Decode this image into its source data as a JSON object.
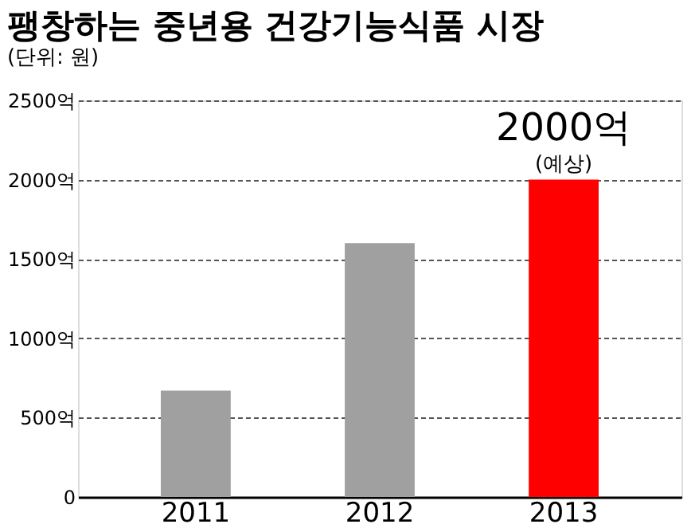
{
  "chart_data": {
    "type": "bar",
    "title": "팽창하는 중년용 건강기능식품 시장",
    "subtitle": "(단위: 원)",
    "categories": [
      "2011",
      "2012",
      "2013"
    ],
    "values": [
      670,
      1600,
      2000
    ],
    "colors": [
      "#a0a0a0",
      "#a0a0a0",
      "#ff0000"
    ],
    "value_labels": [
      null,
      null,
      "2000억"
    ],
    "annotations": [
      {
        "text": "(예상)",
        "x": "2013",
        "y": 2000
      }
    ],
    "ylim": [
      0,
      2500
    ],
    "yticks": [
      0,
      {
        "value": 500,
        "label": "500억"
      },
      {
        "value": 1000,
        "label": "1000억"
      },
      {
        "value": 1500,
        "label": "1500억"
      },
      {
        "value": 2000,
        "label": "2000억"
      },
      {
        "value": 2500,
        "label": "2500억"
      }
    ],
    "grid": "y"
  }
}
